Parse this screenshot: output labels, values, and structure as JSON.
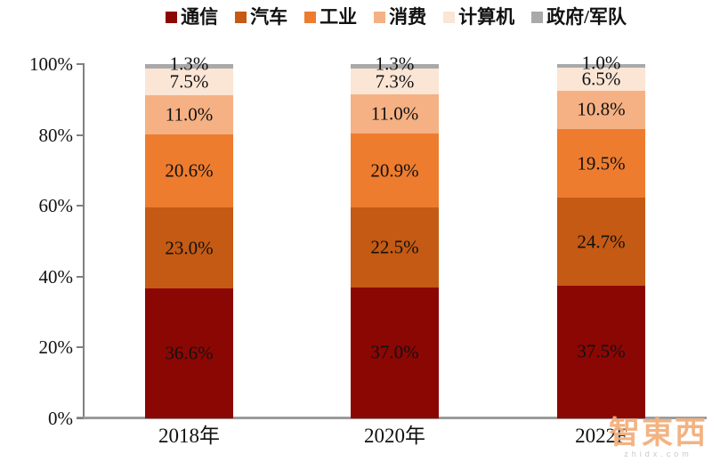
{
  "chart_data": {
    "type": "bar",
    "stacked": true,
    "title": "",
    "categories": [
      "2018年",
      "2020年",
      "2022F"
    ],
    "series": [
      {
        "name": "通信",
        "color": "#8B0703",
        "values": [
          36.6,
          37.0,
          37.5
        ]
      },
      {
        "name": "汽车",
        "color": "#C45A13",
        "values": [
          23.0,
          22.5,
          24.7
        ]
      },
      {
        "name": "工业",
        "color": "#EE7C2F",
        "values": [
          20.6,
          20.9,
          19.5
        ]
      },
      {
        "name": "消费",
        "color": "#F5B183",
        "values": [
          11.0,
          11.0,
          10.8
        ]
      },
      {
        "name": "计算机",
        "color": "#FBE5D5",
        "values": [
          7.5,
          7.3,
          6.5
        ]
      },
      {
        "name": "政府/军队",
        "color": "#A9A9A9",
        "values": [
          1.3,
          1.3,
          1.0
        ]
      }
    ],
    "data_labels": [
      [
        "36.6%",
        "37.0%",
        "37.5%"
      ],
      [
        "23.0%",
        "22.5%",
        "24.7%"
      ],
      [
        "20.6%",
        "20.9%",
        "19.5%"
      ],
      [
        "11.0%",
        "11.0%",
        "10.8%"
      ],
      [
        "7.5%",
        "7.3%",
        "6.5%"
      ],
      [
        "1.3%",
        "1.3%",
        "1.0%"
      ]
    ],
    "y_axis": {
      "min": 0,
      "max": 100,
      "tick_labels": [
        "0%",
        "20%",
        "40%",
        "60%",
        "80%",
        "100%"
      ]
    },
    "legend_position": "top",
    "grid": false
  },
  "watermark": {
    "text": "智東西",
    "subtext": "zhidx.com"
  },
  "colors": {
    "axis": "#808080",
    "baseline": "#9B9B9B",
    "label_text": "#111111"
  }
}
